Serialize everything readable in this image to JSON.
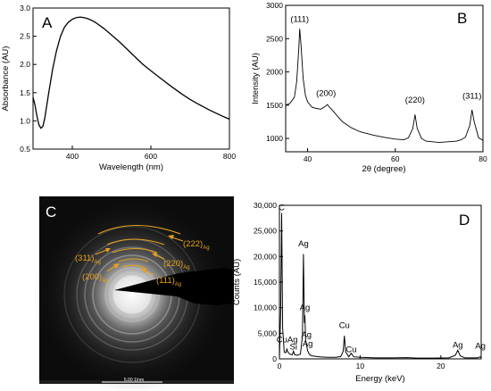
{
  "colors": {
    "axis": "#000000",
    "curve": "#000000",
    "annotation": "#e8a21b",
    "tem_bg": "#0c0c0c"
  },
  "chart_data": [
    {
      "panel": "A",
      "type": "line",
      "xlabel": "Wavelength (nm)",
      "ylabel": "Absorbance (AU)",
      "xlim": [
        300,
        800
      ],
      "ylim": [
        0.5,
        3.0
      ],
      "xticks": [
        "400",
        "600",
        "800"
      ],
      "yticks": [
        "0.5",
        "1.0",
        "1.5",
        "2.0",
        "2.5",
        "3.0"
      ],
      "grid": false,
      "series": [
        {
          "x": [
            300,
            305,
            310,
            315,
            320,
            325,
            330,
            340,
            350,
            360,
            370,
            380,
            390,
            400,
            410,
            420,
            430,
            440,
            450,
            460,
            480,
            500,
            520,
            550,
            580,
            600,
            620,
            650,
            680,
            700,
            720,
            750,
            780,
            800
          ],
          "values": [
            1.42,
            1.28,
            1.08,
            0.93,
            0.87,
            0.9,
            1.05,
            1.5,
            1.92,
            2.25,
            2.5,
            2.66,
            2.75,
            2.8,
            2.83,
            2.84,
            2.83,
            2.81,
            2.78,
            2.74,
            2.64,
            2.52,
            2.4,
            2.2,
            2.0,
            1.89,
            1.78,
            1.62,
            1.47,
            1.38,
            1.3,
            1.19,
            1.09,
            1.03
          ]
        }
      ]
    },
    {
      "panel": "B",
      "type": "line",
      "xlabel": "2θ (degree)",
      "ylabel": "Intensity (AU)",
      "xlim": [
        35,
        80
      ],
      "ylim": [
        800,
        3000
      ],
      "xticks": [
        "40",
        "60",
        "80"
      ],
      "yticks": [
        "1000",
        "1500",
        "2000",
        "2500",
        "3000"
      ],
      "grid": false,
      "annotations": [
        {
          "label": "(111)",
          "x": 38.2,
          "y": 2750
        },
        {
          "label": "(200)",
          "x": 44.2,
          "y": 1640
        },
        {
          "label": "(220)",
          "x": 64.5,
          "y": 1540
        },
        {
          "label": "(311)",
          "x": 77.5,
          "y": 1600
        }
      ],
      "series": [
        {
          "x": [
            35,
            36,
            37,
            37.5,
            38,
            38.2,
            38.5,
            39,
            39.5,
            40,
            41,
            42,
            43,
            44,
            44.5,
            45,
            46,
            47,
            48,
            50,
            52,
            55,
            58,
            60,
            62,
            63,
            64,
            64.5,
            65,
            66,
            67,
            70,
            72,
            74,
            75,
            76,
            77,
            77.5,
            78,
            79,
            80
          ],
          "values": [
            1500,
            1530,
            1620,
            1850,
            2350,
            2650,
            2400,
            1900,
            1650,
            1550,
            1470,
            1450,
            1440,
            1480,
            1510,
            1470,
            1400,
            1320,
            1250,
            1160,
            1100,
            1050,
            1010,
            990,
            980,
            1010,
            1150,
            1360,
            1150,
            1000,
            960,
            940,
            950,
            960,
            980,
            1020,
            1200,
            1430,
            1250,
            1010,
            970
          ]
        }
      ]
    },
    {
      "panel": "C",
      "type": "other",
      "annotations": [
        {
          "label": "(222)",
          "sub": "Ag"
        },
        {
          "label": "(311)",
          "sub": "Ag"
        },
        {
          "label": "(220)",
          "sub": "Ag"
        },
        {
          "label": "(200)",
          "sub": "Ag"
        },
        {
          "label": "(111)",
          "sub": "Ag"
        }
      ],
      "scale_bar": "5.00 1/nm"
    },
    {
      "panel": "D",
      "type": "line",
      "xlabel": "Energy (keV)",
      "ylabel": "Counts (AU)",
      "xlim": [
        0,
        25
      ],
      "ylim": [
        0,
        30000
      ],
      "xticks": [
        "0",
        "10",
        "20"
      ],
      "yticks": [
        "0",
        "5,000",
        "10,000",
        "15,000",
        "20,000",
        "25,000",
        "30,000"
      ],
      "grid": false,
      "annotations": [
        {
          "label": "C",
          "x": 0.28,
          "y": 29000
        },
        {
          "label": "Ag",
          "x": 2.98,
          "y": 22000
        },
        {
          "label": "Ag",
          "x": 3.15,
          "y": 9500
        },
        {
          "label": "CuAg",
          "x": 0.95,
          "y": 3200
        },
        {
          "label": "Si",
          "x": 1.74,
          "y": 1800
        },
        {
          "label": "Ag",
          "x": 3.35,
          "y": 4200
        },
        {
          "label": "Ag",
          "x": 3.5,
          "y": 2400
        },
        {
          "label": "Cu",
          "x": 8.05,
          "y": 6000
        },
        {
          "label": "Cu",
          "x": 8.9,
          "y": 1300
        },
        {
          "label": "Ag",
          "x": 22.1,
          "y": 2200
        },
        {
          "label": "Ag",
          "x": 24.9,
          "y": 2000
        }
      ],
      "series": [
        {
          "x": [
            0,
            0.15,
            0.28,
            0.4,
            0.6,
            0.8,
            0.93,
            1.05,
            1.3,
            1.6,
            1.74,
            1.9,
            2.2,
            2.6,
            2.85,
            2.98,
            3.1,
            3.15,
            3.25,
            3.35,
            3.5,
            3.7,
            4.0,
            5.0,
            6.0,
            7.0,
            7.6,
            7.9,
            8.05,
            8.2,
            8.6,
            8.9,
            9.2,
            10,
            12,
            14,
            15.8,
            17,
            19,
            21,
            21.8,
            22.1,
            22.4,
            23,
            24.5,
            24.9,
            25
          ],
          "values": [
            200,
            9000,
            28500,
            6000,
            1300,
            1200,
            1900,
            1300,
            900,
            800,
            1500,
            800,
            700,
            900,
            4500,
            20500,
            7000,
            8500,
            3500,
            2800,
            1600,
            900,
            600,
            400,
            300,
            300,
            450,
            1500,
            4500,
            1400,
            400,
            1100,
            400,
            300,
            200,
            200,
            250,
            150,
            150,
            200,
            700,
            1700,
            600,
            200,
            200,
            400,
            200
          ]
        }
      ]
    }
  ]
}
